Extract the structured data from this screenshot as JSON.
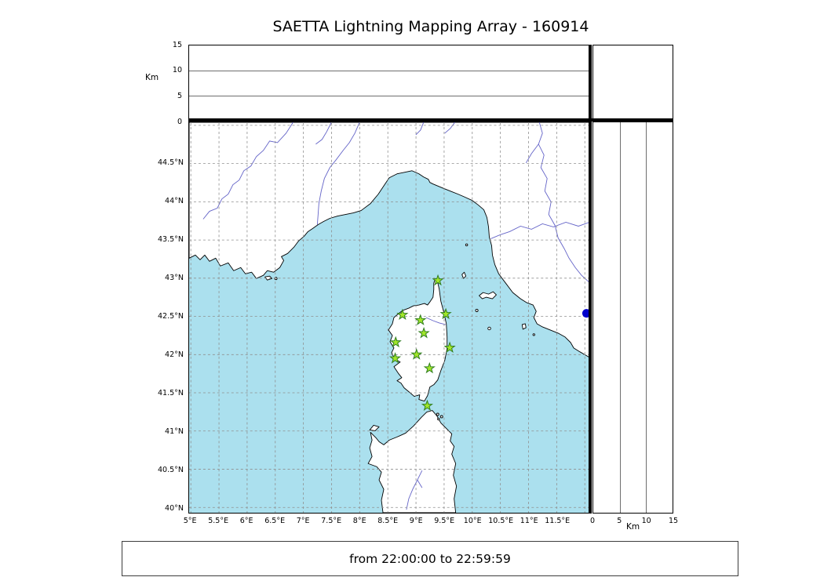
{
  "title": "SAETTA Lightning Mapping Array - 160914",
  "footer": {
    "text": "from 22:00:00 to 22:59:59"
  },
  "axes": {
    "alt_axis_label_left": "Km",
    "alt_axis_label_bottom": "Km",
    "alt_ticks": [
      {
        "v": 0,
        "label": "0"
      },
      {
        "v": 5,
        "label": "5"
      },
      {
        "v": 10,
        "label": "10"
      },
      {
        "v": 15,
        "label": "15"
      }
    ],
    "lat_ticks": [
      {
        "v": 40,
        "label": "40°N"
      },
      {
        "v": 40.5,
        "label": "40.5°N"
      },
      {
        "v": 41,
        "label": "41°N"
      },
      {
        "v": 41.5,
        "label": "41.5°N"
      },
      {
        "v": 42,
        "label": "42°N"
      },
      {
        "v": 42.5,
        "label": "42.5°N"
      },
      {
        "v": 43,
        "label": "43°N"
      },
      {
        "v": 43.5,
        "label": "43.5°N"
      },
      {
        "v": 44,
        "label": "44°N"
      },
      {
        "v": 44.5,
        "label": "44.5°N"
      }
    ],
    "lon_ticks": [
      {
        "v": 5,
        "label": "5°E"
      },
      {
        "v": 5.5,
        "label": "5.5°E"
      },
      {
        "v": 6,
        "label": "6°E"
      },
      {
        "v": 6.5,
        "label": "6.5°E"
      },
      {
        "v": 7,
        "label": "7°E"
      },
      {
        "v": 7.5,
        "label": "7.5°E"
      },
      {
        "v": 8,
        "label": "8°E"
      },
      {
        "v": 8.5,
        "label": "8.5°E"
      },
      {
        "v": 9,
        "label": "9°E"
      },
      {
        "v": 9.5,
        "label": "9.5°E"
      },
      {
        "v": 10,
        "label": "10°E"
      },
      {
        "v": 10.5,
        "label": "10.5°E"
      },
      {
        "v": 11,
        "label": "11°E"
      },
      {
        "v": 11.5,
        "label": "11.5°E"
      }
    ]
  },
  "colors": {
    "sea": "#abe0ee",
    "land": "#ffffff",
    "coast": "#000000",
    "river": "#6464c8",
    "grid": "#8f8f8f",
    "station_fill": "#a2e62a",
    "station_stroke": "#2f7d1e",
    "point": "#0000cc"
  },
  "chart_data": {
    "type": "scatter",
    "title": "SAETTA Lightning Mapping Array - 160914",
    "subtitle": "from 22:00:00 to 22:59:59",
    "map_extent": {
      "lon_min": 4.97,
      "lon_max": 12.08,
      "lat_min": 39.93,
      "lat_max": 45.04
    },
    "grid_interval_deg": 0.5,
    "altitude_axis_km": {
      "min": 0,
      "max": 15,
      "ticks": [
        0,
        5,
        10,
        15
      ],
      "gridlines": [
        5,
        10
      ]
    },
    "stations": [
      {
        "lon": 9.39,
        "lat": 42.97
      },
      {
        "lon": 8.76,
        "lat": 42.52
      },
      {
        "lon": 9.08,
        "lat": 42.45
      },
      {
        "lon": 9.53,
        "lat": 42.53
      },
      {
        "lon": 9.14,
        "lat": 42.28
      },
      {
        "lon": 8.64,
        "lat": 42.16
      },
      {
        "lon": 9.6,
        "lat": 42.09
      },
      {
        "lon": 9.01,
        "lat": 42.0
      },
      {
        "lon": 8.63,
        "lat": 41.95
      },
      {
        "lon": 9.24,
        "lat": 41.82
      },
      {
        "lon": 9.2,
        "lat": 41.33
      }
    ],
    "extra_point": {
      "lon": 12.03,
      "lat": 42.54
    }
  }
}
